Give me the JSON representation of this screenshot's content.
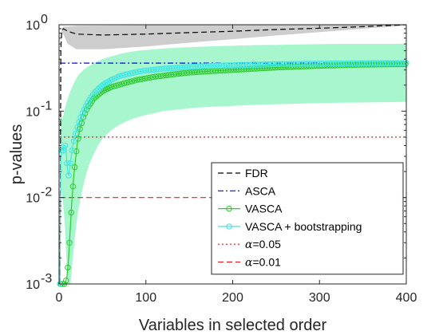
{
  "chart_data": {
    "type": "line",
    "title": "",
    "xlabel": "Variables in selected order",
    "ylabel": "p-values",
    "xlim": [
      0,
      400
    ],
    "ylim": [
      0.001,
      1
    ],
    "yscale": "log",
    "xticks": [
      0,
      100,
      200,
      300,
      400
    ],
    "xtick_labels": [
      "0",
      "100",
      "200",
      "300",
      "400"
    ],
    "yticks": [
      0.001,
      0.01,
      0.1,
      1
    ],
    "ytick_labels": [
      {
        "base": "10",
        "exp": "-3"
      },
      {
        "base": "10",
        "exp": "-2"
      },
      {
        "base": "10",
        "exp": "-1"
      },
      {
        "base": "10",
        "exp": "0"
      }
    ],
    "grid": false,
    "legend_position": "bottom-right",
    "legend": [
      {
        "label": "FDR",
        "series": "FDR"
      },
      {
        "label": "ASCA",
        "series": "ASCA"
      },
      {
        "label": "VASCA",
        "series": "VASCA"
      },
      {
        "label": "VASCA + bootstrapping",
        "series": "VASCA + bootstrapping"
      },
      {
        "label_prefix": "α",
        "label_suffix": "=0.05",
        "series": "alpha005"
      },
      {
        "label_prefix": "α",
        "label_suffix": "=0.01",
        "series": "alpha001"
      }
    ],
    "series": [
      {
        "name": "FDR",
        "style": "dashed",
        "color": "#000000",
        "x": [
          1,
          2,
          3,
          5,
          10,
          20,
          50,
          100,
          150,
          200,
          250,
          300,
          350,
          400
        ],
        "y": [
          0.001,
          0.5,
          0.85,
          0.9,
          0.84,
          0.78,
          0.76,
          0.78,
          0.81,
          0.84,
          0.88,
          0.91,
          0.95,
          1.0
        ],
        "band_low": [
          0.001,
          0.5,
          0.8,
          0.78,
          0.6,
          0.52,
          0.52,
          0.56,
          0.62,
          0.68,
          0.75,
          0.82,
          0.9,
          0.98
        ],
        "band_high": [
          0.001,
          0.5,
          0.9,
          0.95,
          0.95,
          0.97,
          0.98,
          0.99,
          1.0,
          1.0,
          1.0,
          1.0,
          1.0,
          1.0
        ],
        "band_color": "#c8c8c8"
      },
      {
        "name": "ASCA",
        "style": "dashdot",
        "color": "#0000ff",
        "x": [
          1,
          400
        ],
        "y": [
          0.36,
          0.36
        ]
      },
      {
        "name": "VASCA",
        "style": "solid",
        "marker": "circle",
        "color": "#2ecc2e",
        "x": [
          2,
          5,
          7,
          9,
          11,
          13,
          15,
          17,
          19,
          21,
          24,
          28,
          33,
          40,
          50,
          60,
          75,
          90,
          110,
          130,
          150,
          175,
          200,
          250,
          300,
          350,
          400
        ],
        "y": [
          0.001,
          0.001,
          0.001,
          0.0012,
          0.002,
          0.0045,
          0.01,
          0.018,
          0.028,
          0.042,
          0.062,
          0.085,
          0.11,
          0.14,
          0.17,
          0.19,
          0.21,
          0.23,
          0.25,
          0.265,
          0.28,
          0.29,
          0.3,
          0.32,
          0.335,
          0.345,
          0.35
        ],
        "band_color": "#9ff5c8"
      },
      {
        "name": "VASCA + bootstrapping",
        "style": "solid",
        "marker": "circle",
        "color": "#3ee6e6",
        "x": [
          1,
          2,
          3,
          4,
          5,
          6,
          7,
          8,
          9,
          10,
          11,
          12,
          13,
          14,
          15,
          16,
          17,
          18,
          19,
          20,
          22,
          25,
          28,
          32,
          36,
          40,
          45,
          50,
          60,
          70,
          80,
          90,
          100,
          120,
          140,
          160,
          180,
          200,
          225,
          250,
          275,
          300,
          325,
          350,
          375,
          400
        ],
        "y": [
          0.001,
          0.035,
          0.035,
          0.037,
          0.035,
          0.04,
          0.04,
          0.038,
          0.025,
          0.02,
          0.018,
          0.02,
          0.025,
          0.03,
          0.035,
          0.04,
          0.045,
          0.05,
          0.055,
          0.06,
          0.07,
          0.085,
          0.1,
          0.12,
          0.14,
          0.16,
          0.18,
          0.2,
          0.23,
          0.255,
          0.27,
          0.285,
          0.295,
          0.31,
          0.32,
          0.33,
          0.335,
          0.34,
          0.345,
          0.35,
          0.352,
          0.355,
          0.357,
          0.359,
          0.36,
          0.36
        ],
        "band_low": [
          0.001,
          0.01,
          0.012,
          0.01,
          0.008,
          0.006,
          0.004,
          0.0025,
          0.0015,
          0.001,
          0.001,
          0.001,
          0.001,
          0.0012,
          0.0016,
          0.002,
          0.0026,
          0.0033,
          0.004,
          0.005,
          0.007,
          0.01,
          0.014,
          0.02,
          0.026,
          0.032,
          0.04,
          0.048,
          0.06,
          0.07,
          0.078,
          0.085,
          0.09,
          0.1,
          0.105,
          0.11,
          0.113,
          0.115,
          0.118,
          0.12,
          0.122,
          0.124,
          0.125,
          0.126,
          0.127,
          0.128
        ],
        "band_high": [
          0.001,
          0.09,
          0.08,
          0.085,
          0.09,
          0.1,
          0.11,
          0.12,
          0.13,
          0.14,
          0.15,
          0.16,
          0.17,
          0.18,
          0.19,
          0.2,
          0.21,
          0.22,
          0.23,
          0.24,
          0.26,
          0.28,
          0.3,
          0.32,
          0.34,
          0.36,
          0.38,
          0.4,
          0.43,
          0.46,
          0.48,
          0.5,
          0.51,
          0.53,
          0.545,
          0.555,
          0.565,
          0.57,
          0.58,
          0.585,
          0.59,
          0.595,
          0.6,
          0.6,
          0.6,
          0.6
        ],
        "band_color": "#9ff5c8"
      },
      {
        "name": "alpha005",
        "style": "dotted",
        "color": "#cc2222",
        "x": [
          1,
          400
        ],
        "y": [
          0.05,
          0.05
        ]
      },
      {
        "name": "alpha001",
        "style": "dashed",
        "color": "#e0202a",
        "x": [
          1,
          400
        ],
        "y": [
          0.01,
          0.01
        ]
      }
    ]
  }
}
